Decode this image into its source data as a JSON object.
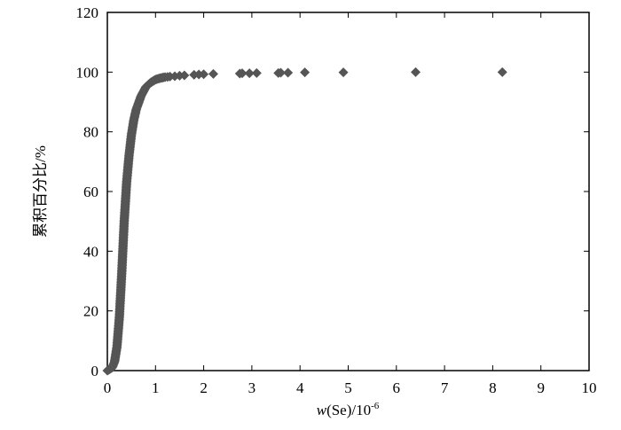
{
  "chart_data": {
    "type": "scatter",
    "title": "",
    "xlabel": {
      "italic": "w",
      "rest": "(Se)/10",
      "sup": "-6"
    },
    "ylabel": "累积百分比/%",
    "xlim": [
      0,
      10
    ],
    "ylim": [
      0,
      120
    ],
    "x_ticks": [
      "0",
      "1",
      "2",
      "3",
      "4",
      "5",
      "6",
      "7",
      "8",
      "9",
      "10"
    ],
    "y_ticks": [
      "0",
      "20",
      "40",
      "60",
      "80",
      "100",
      "120"
    ],
    "grid": false,
    "legend": "none",
    "marker": "diamond",
    "marker_color": "#555555",
    "curve": {
      "x": [
        0.0,
        0.1,
        0.15,
        0.2,
        0.25,
        0.3,
        0.35,
        0.4,
        0.45,
        0.5,
        0.55,
        0.6,
        0.7,
        0.8,
        0.9,
        1.0,
        1.1,
        1.2
      ],
      "y": [
        0,
        1,
        3,
        8,
        18,
        33,
        50,
        63,
        72,
        79,
        84,
        87.5,
        92,
        95,
        96.5,
        97.5,
        98,
        98.3
      ]
    },
    "points": [
      {
        "x": 1.25,
        "y": 98.4
      },
      {
        "x": 1.3,
        "y": 98.5
      },
      {
        "x": 1.4,
        "y": 98.6
      },
      {
        "x": 1.5,
        "y": 98.8
      },
      {
        "x": 1.6,
        "y": 98.9
      },
      {
        "x": 1.8,
        "y": 99.1
      },
      {
        "x": 1.9,
        "y": 99.2
      },
      {
        "x": 2.0,
        "y": 99.3
      },
      {
        "x": 2.2,
        "y": 99.4
      },
      {
        "x": 2.75,
        "y": 99.5
      },
      {
        "x": 2.8,
        "y": 99.6
      },
      {
        "x": 2.95,
        "y": 99.6
      },
      {
        "x": 3.1,
        "y": 99.7
      },
      {
        "x": 3.55,
        "y": 99.7
      },
      {
        "x": 3.6,
        "y": 99.8
      },
      {
        "x": 3.75,
        "y": 99.8
      },
      {
        "x": 4.1,
        "y": 99.9
      },
      {
        "x": 4.9,
        "y": 99.9
      },
      {
        "x": 6.4,
        "y": 100
      },
      {
        "x": 8.2,
        "y": 100
      }
    ]
  }
}
